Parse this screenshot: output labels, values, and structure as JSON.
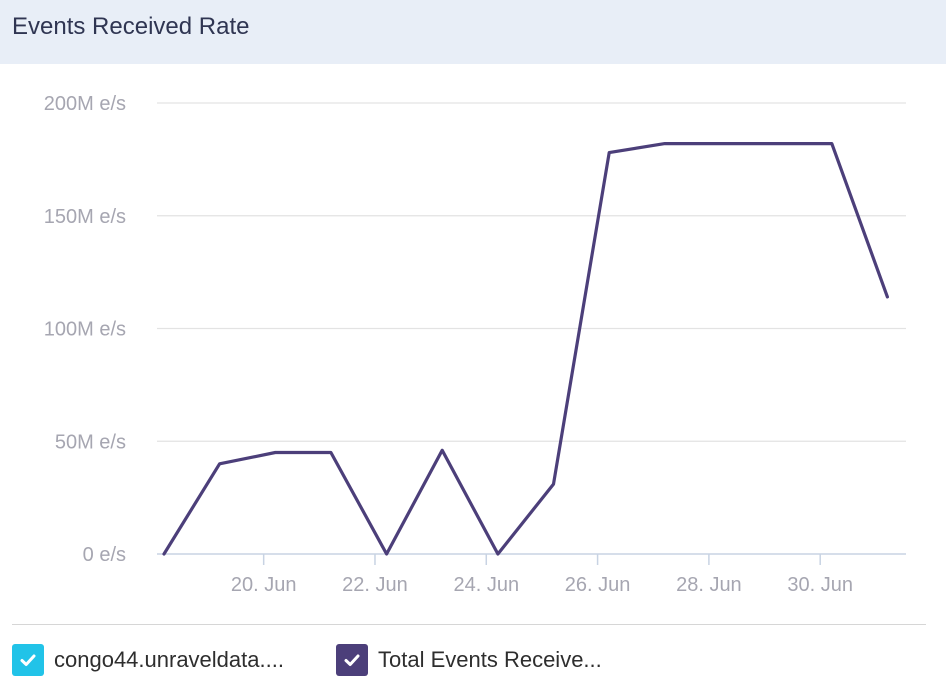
{
  "header": {
    "title": "Events Received Rate"
  },
  "colors": {
    "header_bg": "#e8eef7",
    "series_line": "#4c3f7a",
    "legend_cyan": "#21c3e8",
    "legend_purple": "#4c3f7a"
  },
  "legend": {
    "items": [
      {
        "label": "congo44.unraveldata....",
        "color": "#21c3e8",
        "checked": true,
        "icon": "check-icon"
      },
      {
        "label": "Total Events Receive...",
        "color": "#4c3f7a",
        "checked": true,
        "icon": "check-icon"
      }
    ]
  },
  "chart_data": {
    "type": "line",
    "title": "Events Received Rate",
    "xlabel": "",
    "ylabel": "",
    "y_ticks": [
      {
        "value": 0,
        "label": "0 e/s"
      },
      {
        "value": 50000000,
        "label": "50M e/s"
      },
      {
        "value": 100000000,
        "label": "100M e/s"
      },
      {
        "value": 150000000,
        "label": "150M e/s"
      },
      {
        "value": 200000000,
        "label": "200M e/s"
      }
    ],
    "ylim": [
      0,
      200000000
    ],
    "x_ticks": [
      {
        "date": "2024-06-20",
        "label": "20. Jun"
      },
      {
        "date": "2024-06-22",
        "label": "22. Jun"
      },
      {
        "date": "2024-06-24",
        "label": "24. Jun"
      },
      {
        "date": "2024-06-26",
        "label": "26. Jun"
      },
      {
        "date": "2024-06-28",
        "label": "28. Jun"
      },
      {
        "date": "2024-06-30",
        "label": "30. Jun"
      }
    ],
    "xlim": [
      "2024-06-18T02:00",
      "2024-07-01T13:00"
    ],
    "grid": true,
    "series": [
      {
        "name": "Total Events Receive...",
        "color": "#4c3f7a",
        "points": [
          {
            "x": "2024-06-18T05:00",
            "y": 0
          },
          {
            "x": "2024-06-19T05:00",
            "y": 40000000
          },
          {
            "x": "2024-06-20T05:00",
            "y": 45000000
          },
          {
            "x": "2024-06-21T05:00",
            "y": 45000000
          },
          {
            "x": "2024-06-22T05:00",
            "y": 0
          },
          {
            "x": "2024-06-23T05:00",
            "y": 46000000
          },
          {
            "x": "2024-06-24T05:00",
            "y": 0
          },
          {
            "x": "2024-06-25T05:00",
            "y": 31000000
          },
          {
            "x": "2024-06-26T05:00",
            "y": 178000000
          },
          {
            "x": "2024-06-27T05:00",
            "y": 182000000
          },
          {
            "x": "2024-06-28T05:00",
            "y": 182000000
          },
          {
            "x": "2024-06-29T05:00",
            "y": 182000000
          },
          {
            "x": "2024-06-30T05:00",
            "y": 182000000
          },
          {
            "x": "2024-07-01T05:00",
            "y": 114000000
          }
        ]
      }
    ]
  }
}
